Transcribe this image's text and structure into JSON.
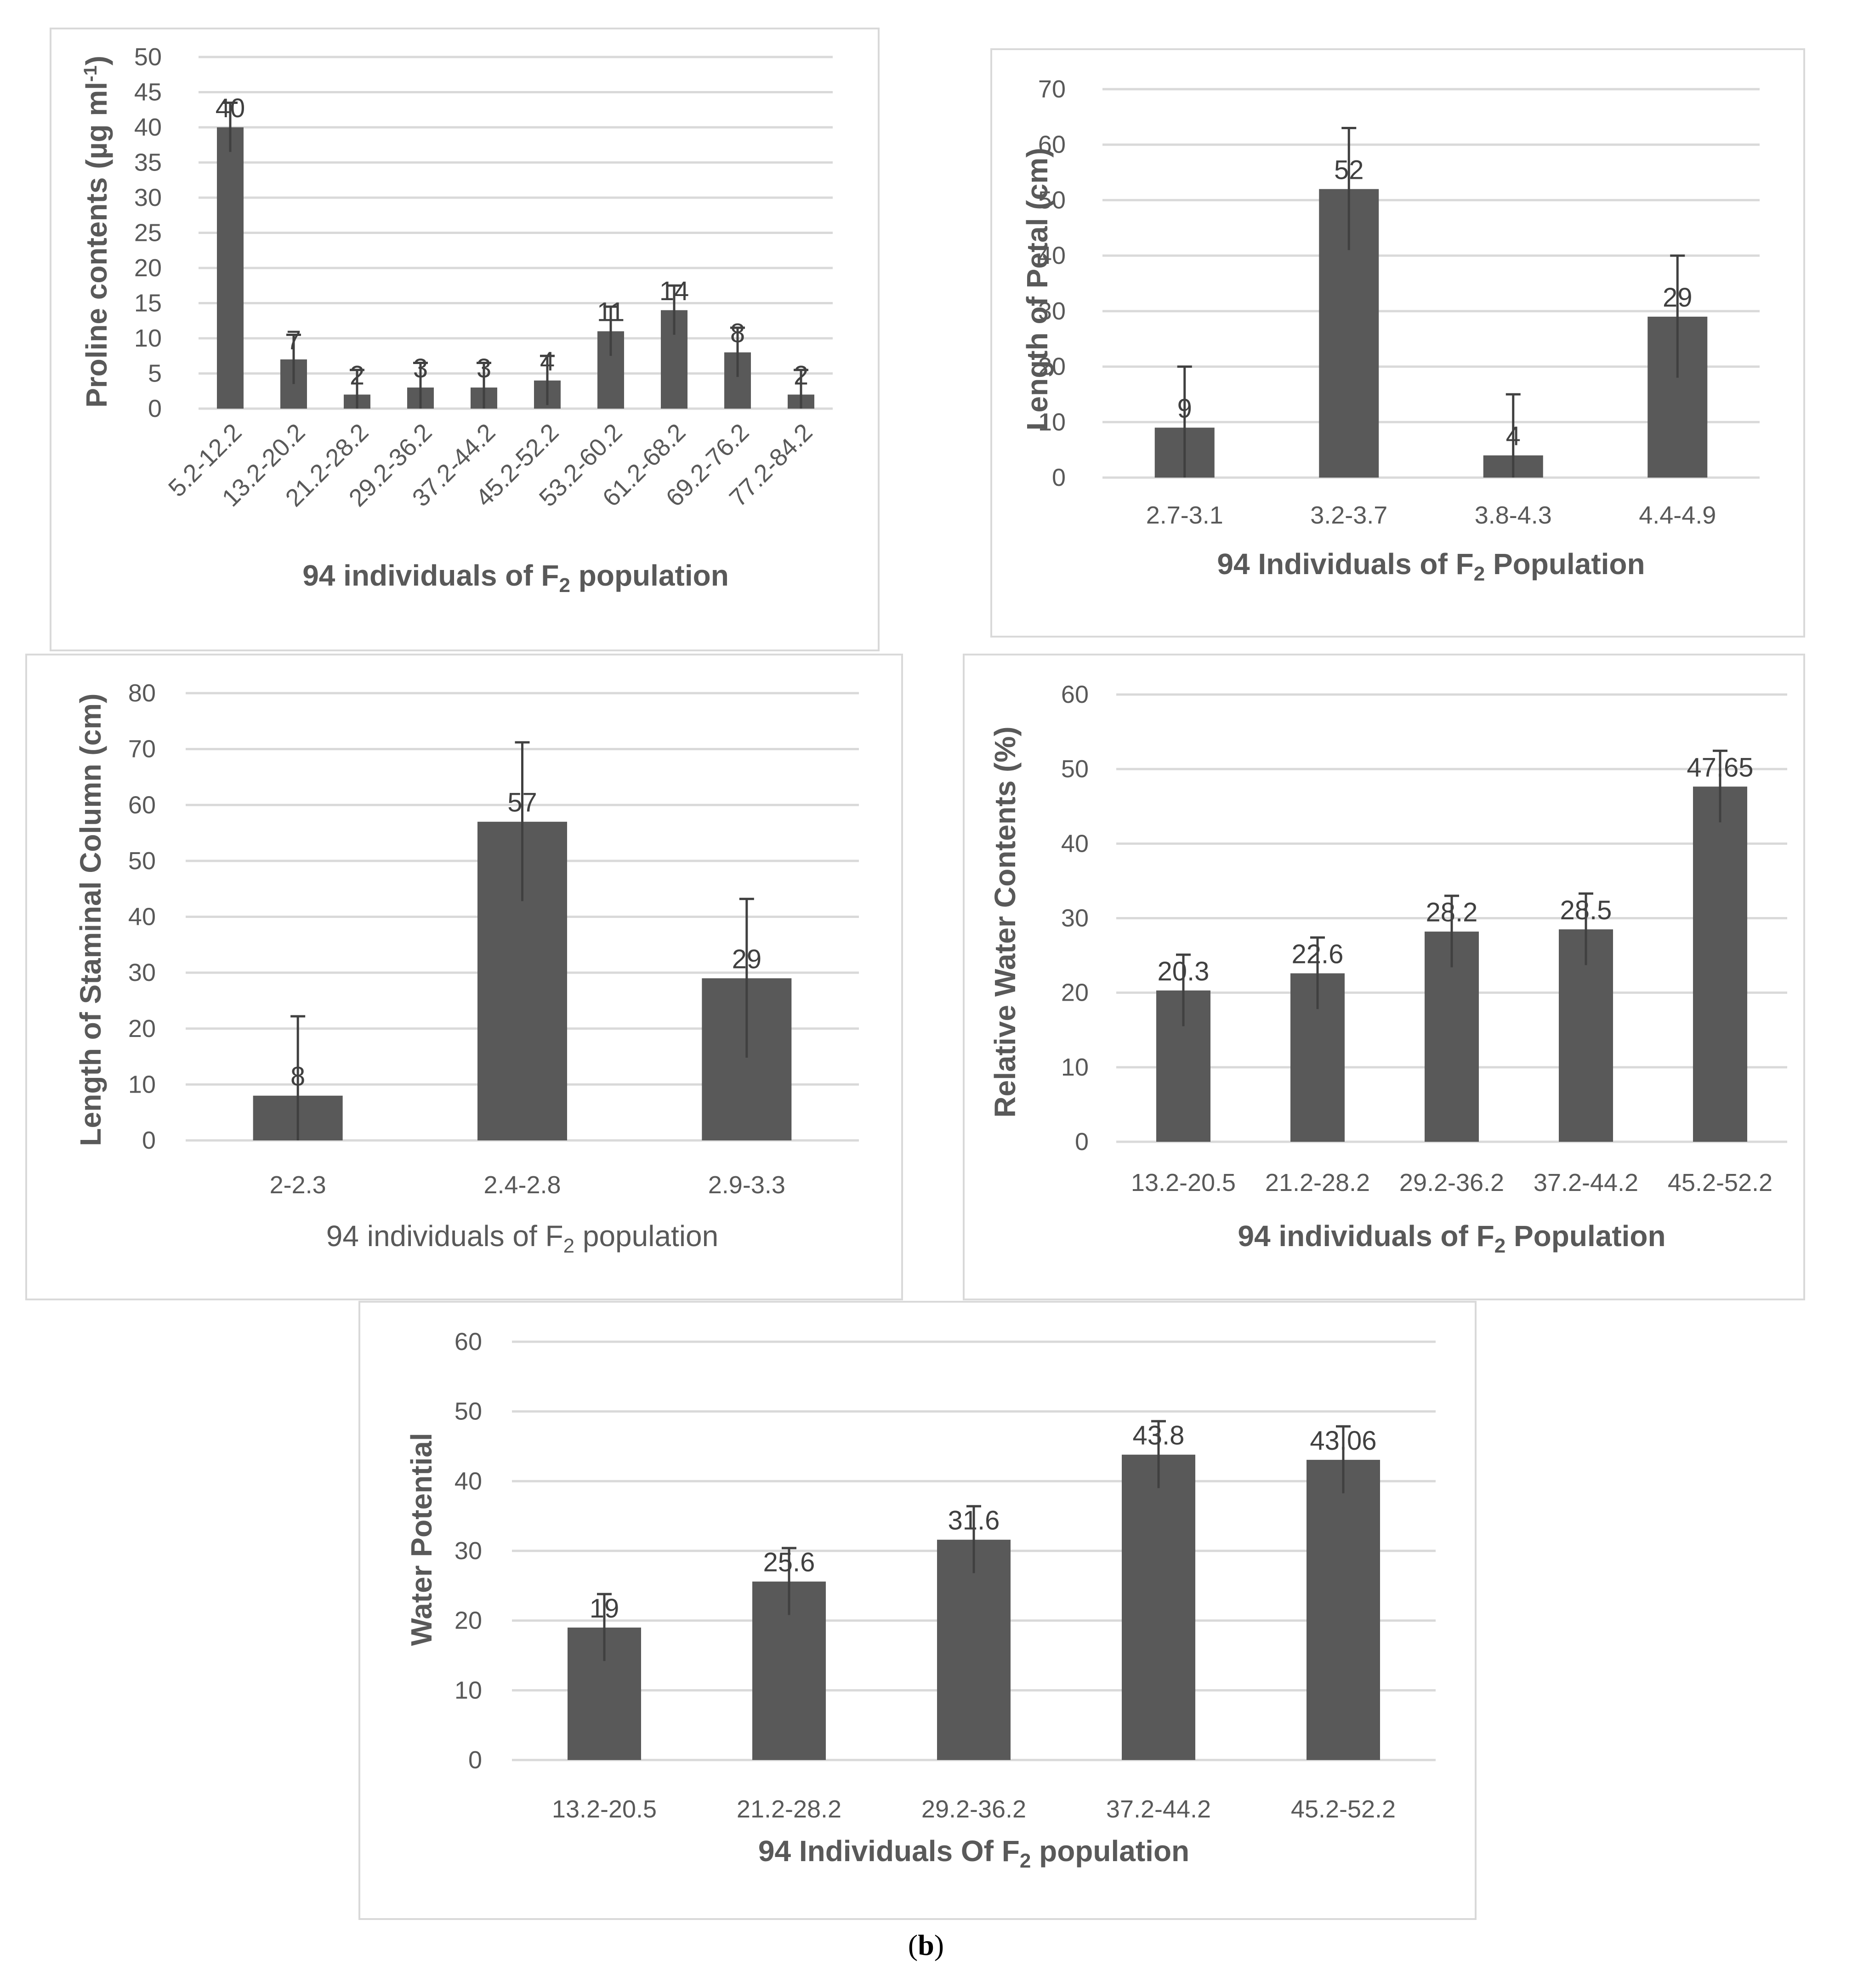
{
  "caption": {
    "open": "(",
    "letter": "b",
    "close": ")"
  },
  "chart_data": [
    {
      "id": "proline",
      "type": "bar",
      "ylabel_pre": "Proline contents (µg ml",
      "ylabel_sup": "-1",
      "ylabel_post": ")",
      "ylabel_bold": true,
      "xlabel_pre": "94 individuals of F",
      "xlabel_sub": "2",
      "xlabel_post": " population",
      "xlabel_bold": true,
      "categories": [
        "5.2-12.2",
        "13.2-20.2",
        "21.2-28.2",
        "29.2-36.2",
        "37.2-44.2",
        "45.2-52.2",
        "53.2-60.2",
        "61.2-68.2",
        "69.2-76.2",
        "77.2-84.2"
      ],
      "values": [
        40,
        7,
        2,
        3,
        3,
        4,
        11,
        14,
        8,
        2
      ],
      "labels": [
        "40",
        "7",
        "2",
        "3",
        "3",
        "4",
        "11",
        "14",
        "8",
        "2"
      ],
      "error": 3.5,
      "ylim": [
        0,
        50
      ],
      "yticks": [
        0,
        5,
        10,
        15,
        20,
        25,
        30,
        35,
        40,
        45,
        50
      ],
      "rotate_x": true
    },
    {
      "id": "petal",
      "type": "bar",
      "ylabel_pre": "Length of Petal (cm)",
      "ylabel_bold": true,
      "xlabel_pre": "94  Individuals of F",
      "xlabel_sub": "2",
      "xlabel_post": " Population",
      "xlabel_bold": true,
      "categories": [
        "2.7-3.1",
        "3.2-3.7",
        "3.8-4.3",
        "4.4-4.9"
      ],
      "values": [
        9,
        52,
        4,
        29
      ],
      "labels": [
        "9",
        "52",
        "4",
        "29"
      ],
      "error": 11,
      "ylim": [
        0,
        70
      ],
      "yticks": [
        0,
        10,
        20,
        30,
        40,
        50,
        60,
        70
      ],
      "rotate_x": false
    },
    {
      "id": "staminal",
      "type": "bar",
      "ylabel_pre": "Length of Staminal Column (cm)",
      "ylabel_bold": true,
      "xlabel_pre": "94 individuals of F",
      "xlabel_sub": "2",
      "xlabel_post": " population",
      "xlabel_bold": false,
      "categories": [
        "2-2.3",
        "2.4-2.8",
        "2.9-3.3"
      ],
      "values": [
        8,
        57,
        29
      ],
      "labels": [
        "8",
        "57",
        "29"
      ],
      "error": 14.2,
      "ylim": [
        0,
        80
      ],
      "yticks": [
        0,
        10,
        20,
        30,
        40,
        50,
        60,
        70,
        80
      ],
      "rotate_x": false
    },
    {
      "id": "rwc",
      "type": "bar",
      "ylabel_pre": "Relative Water Contents (%)",
      "ylabel_bold": true,
      "xlabel_pre": "94 individuals of F",
      "xlabel_sub": "2",
      "xlabel_post": "  Population",
      "xlabel_bold": true,
      "categories": [
        "13.2-20.5",
        "21.2-28.2",
        "29.2-36.2",
        "37.2-44.2",
        "45.2-52.2"
      ],
      "values": [
        20.3,
        22.6,
        28.2,
        28.5,
        47.65
      ],
      "labels": [
        "20.3",
        "22.6",
        "28.2",
        "28.5",
        "47.65"
      ],
      "error": 4.8,
      "ylim": [
        0,
        60
      ],
      "yticks": [
        0,
        10,
        20,
        30,
        40,
        50,
        60
      ],
      "rotate_x": false
    },
    {
      "id": "wp",
      "type": "bar",
      "ylabel_pre": "Water Potential",
      "ylabel_bold": true,
      "xlabel_pre": "94 Individuals Of F",
      "xlabel_sub": "2",
      "xlabel_post": " population",
      "xlabel_bold": true,
      "categories": [
        "13.2-20.5",
        "21.2-28.2",
        "29.2-36.2",
        "37.2-44.2",
        "45.2-52.2"
      ],
      "values": [
        19,
        25.6,
        31.6,
        43.8,
        43.06
      ],
      "labels": [
        "19",
        "25.6",
        "31.6",
        "43.8",
        "43.06"
      ],
      "error": 4.8,
      "ylim": [
        0,
        60
      ],
      "yticks": [
        0,
        10,
        20,
        30,
        40,
        50,
        60
      ],
      "rotate_x": false
    }
  ]
}
